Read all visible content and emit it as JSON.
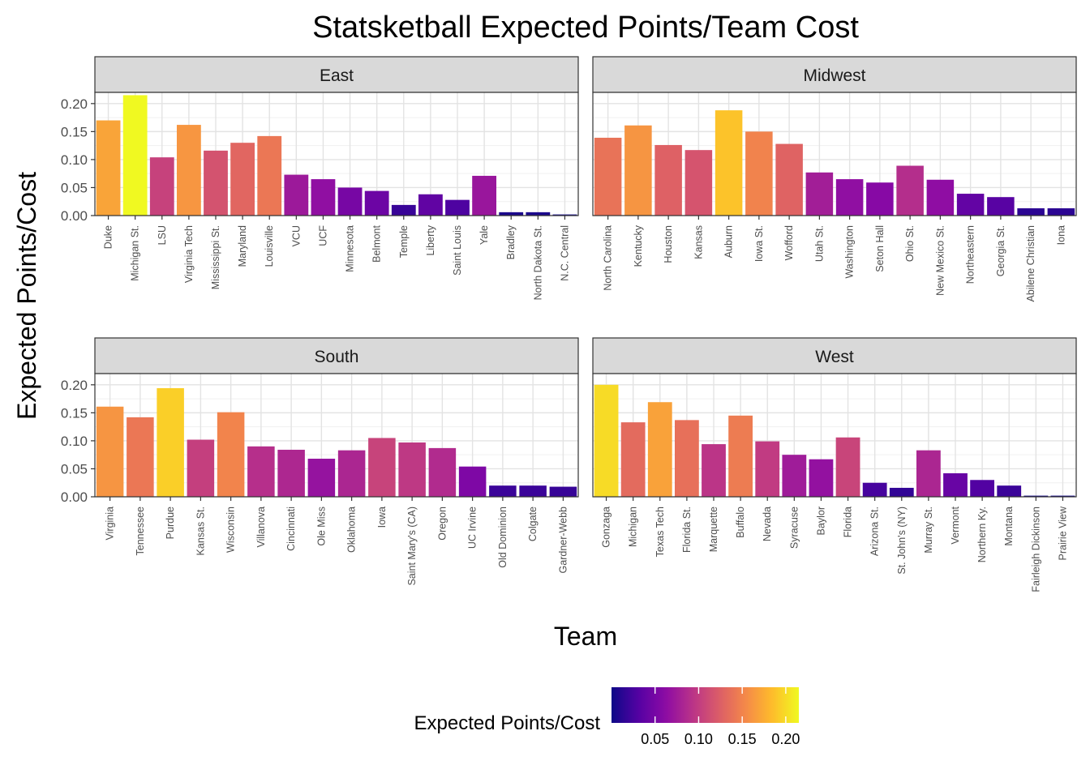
{
  "chart_data": {
    "type": "bar",
    "title": "Statsketball Expected Points/Team Cost",
    "xlabel": "Team",
    "ylabel": "Expected Points/Cost",
    "ylim": [
      0,
      0.22
    ],
    "yticks": [
      0.0,
      0.05,
      0.1,
      0.15,
      0.2
    ],
    "ytick_labels": [
      "0.00",
      "0.05",
      "0.10",
      "0.15",
      "0.20"
    ],
    "grid": true,
    "facet_layout": "2x2",
    "legend": {
      "title": "Expected Points/Cost",
      "position": "bottom",
      "type": "colorbar",
      "palette": "plasma",
      "range": [
        0.0,
        0.215
      ],
      "ticks": [
        0.05,
        0.1,
        0.15,
        0.2
      ],
      "tick_labels": [
        "0.05",
        "0.10",
        "0.15",
        "0.20"
      ]
    },
    "facets": [
      {
        "name": "East",
        "categories": [
          "Duke",
          "Michigan St.",
          "LSU",
          "Virginia Tech",
          "Mississippi St.",
          "Maryland",
          "Louisville",
          "VCU",
          "UCF",
          "Minnesota",
          "Belmont",
          "Temple",
          "Liberty",
          "Saint Louis",
          "Yale",
          "Bradley",
          "North Dakota St.",
          "N.C. Central"
        ],
        "values": [
          0.17,
          0.215,
          0.104,
          0.162,
          0.116,
          0.13,
          0.142,
          0.073,
          0.065,
          0.05,
          0.044,
          0.019,
          0.038,
          0.028,
          0.071,
          0.006,
          0.006,
          0.002
        ]
      },
      {
        "name": "Midwest",
        "categories": [
          "North Carolina",
          "Kentucky",
          "Houston",
          "Kansas",
          "Auburn",
          "Iowa St.",
          "Wofford",
          "Utah St.",
          "Washington",
          "Seton Hall",
          "Ohio St.",
          "New Mexico St.",
          "Northeastern",
          "Georgia St.",
          "Abilene Christian",
          "Iona"
        ],
        "values": [
          0.139,
          0.161,
          0.126,
          0.117,
          0.188,
          0.15,
          0.128,
          0.077,
          0.065,
          0.059,
          0.089,
          0.064,
          0.039,
          0.033,
          0.013,
          0.013
        ]
      },
      {
        "name": "South",
        "categories": [
          "Virginia",
          "Tennessee",
          "Purdue",
          "Kansas St.",
          "Wisconsin",
          "Villanova",
          "Cincinnati",
          "Ole Miss",
          "Oklahoma",
          "Iowa",
          "Saint Mary's (CA)",
          "Oregon",
          "UC Irvine",
          "Old Dominion",
          "Colgate",
          "Gardner-Webb"
        ],
        "values": [
          0.161,
          0.142,
          0.194,
          0.102,
          0.151,
          0.09,
          0.084,
          0.068,
          0.083,
          0.105,
          0.097,
          0.087,
          0.054,
          0.02,
          0.02,
          0.018
        ]
      },
      {
        "name": "West",
        "categories": [
          "Gonzaga",
          "Michigan",
          "Texas Tech",
          "Florida St.",
          "Marquette",
          "Buffalo",
          "Nevada",
          "Syracuse",
          "Baylor",
          "Florida",
          "Arizona St.",
          "St. John's (NY)",
          "Murray St.",
          "Vermont",
          "Northern Ky.",
          "Montana",
          "Fairleigh Dickinson",
          "Prairie View"
        ],
        "values": [
          0.2,
          0.133,
          0.169,
          0.137,
          0.094,
          0.145,
          0.099,
          0.075,
          0.067,
          0.106,
          0.025,
          0.016,
          0.083,
          0.042,
          0.03,
          0.02,
          0.002,
          0.002
        ]
      }
    ]
  }
}
